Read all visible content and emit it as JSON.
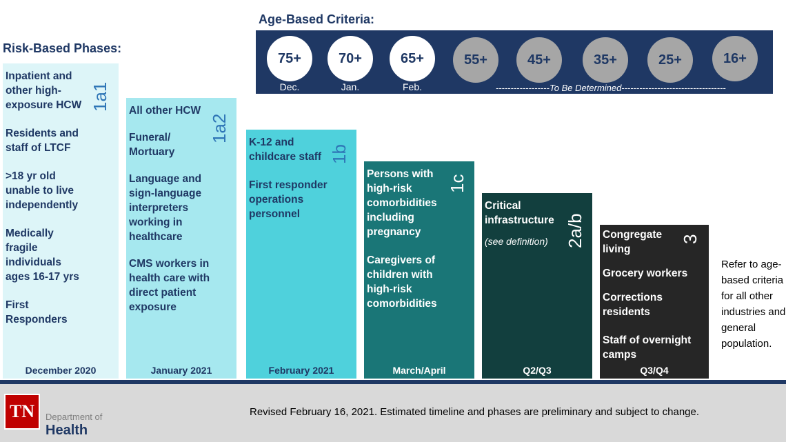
{
  "risk_heading": "Risk-Based Phases:",
  "age_heading": "Age-Based Criteria:",
  "age_groups": [
    {
      "label": "75+",
      "month": "Dec."
    },
    {
      "label": "70+",
      "month": "Jan."
    },
    {
      "label": "65+",
      "month": "Feb."
    },
    {
      "label": "55+",
      "month": ""
    },
    {
      "label": "45+",
      "month": ""
    },
    {
      "label": "35+",
      "month": ""
    },
    {
      "label": "25+",
      "month": ""
    },
    {
      "label": "16+",
      "month": ""
    }
  ],
  "tbd_dashes_left": "------------------",
  "tbd_text": "To Be Determined",
  "tbd_dashes_right": "-----------------------------------",
  "phases": [
    {
      "tag": "1a1",
      "items": [
        "Inpatient and other high-exposure HCW",
        "Residents and staff of LTCF",
        ">18 yr old unable to live independently",
        "Medically fragile individuals ages 16-17 yrs",
        "First Responders"
      ],
      "month": "December 2020",
      "color": "#ddf5f8",
      "text_color": "#1f3864"
    },
    {
      "tag": "1a2",
      "items": [
        "All other HCW",
        "Funeral/ Mortuary",
        "Language and sign-language interpreters working in healthcare",
        "CMS  workers in health care with direct patient exposure"
      ],
      "month": "January 2021",
      "color": "#a6e8ef",
      "text_color": "#1f3864"
    },
    {
      "tag": "1b",
      "items": [
        "K-12 and childcare staff",
        "First responder operations personnel"
      ],
      "month": "February 2021",
      "color": "#4fd1dc",
      "text_color": "#1f3864"
    },
    {
      "tag": "1c",
      "items": [
        "Persons with high-risk comorbidities including pregnancy",
        "Caregivers of children with high-risk comorbidities"
      ],
      "month": "March/April",
      "color": "#1a7677",
      "text_color": "#ffffff"
    },
    {
      "tag": "2a/b",
      "items": [
        "Critical infrastructure",
        "(see definition)"
      ],
      "month": "Q2/Q3",
      "color": "#123f3e",
      "text_color": "#ffffff"
    },
    {
      "tag": "3",
      "items": [
        "Congregate living",
        "Grocery workers",
        "Corrections residents",
        "Staff of overnight camps"
      ],
      "month": "Q3/Q4",
      "color": "#262626",
      "text_color": "#ffffff"
    }
  ],
  "refer_text": "Refer to age-based criteria for all other industries and general population.",
  "logo_text": "TN",
  "dept_text": "Department of",
  "health_text": "Health",
  "revised_text": "Revised February 16, 2021.  Estimated timeline and phases are preliminary and subject to change."
}
